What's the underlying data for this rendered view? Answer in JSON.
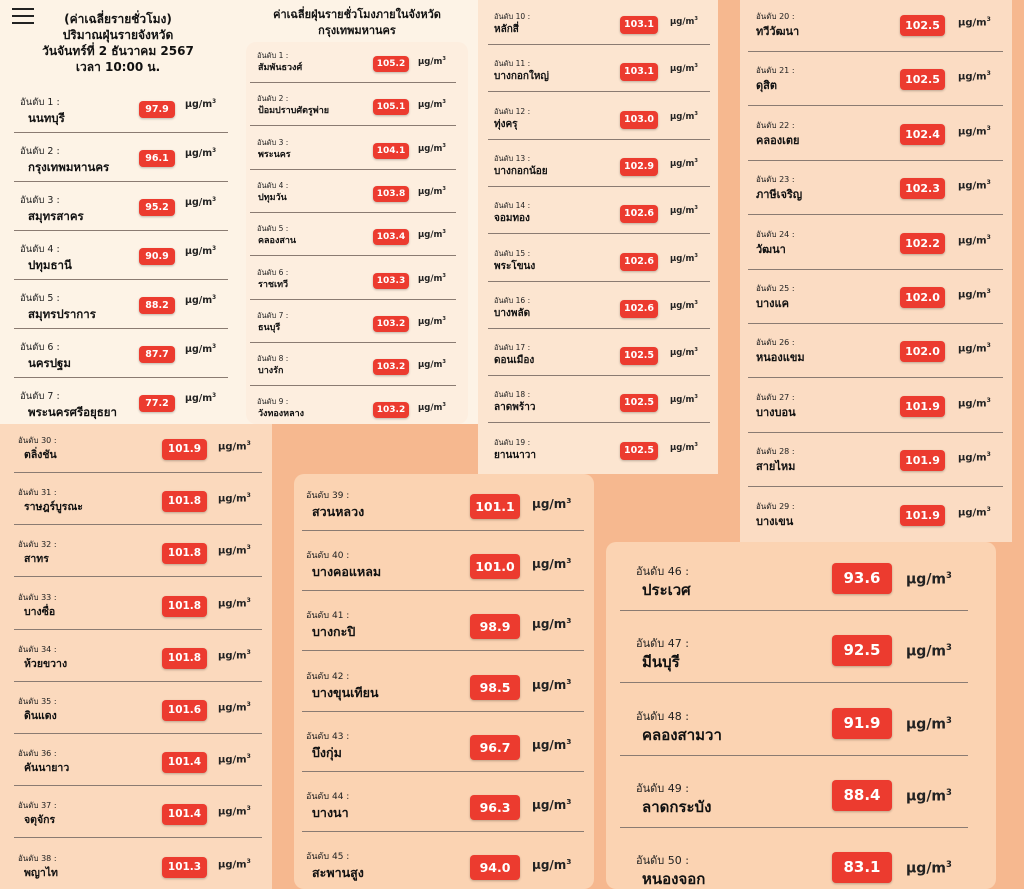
{
  "header": {
    "province_title": [
      "(ค่าเฉลี่ยรายชั่วโมง)",
      "ปริมาณฝุ่นรายจังหวัด",
      "วันจันทร์ที่ 2 ธันวาคม 2567",
      "เวลา 10:00 น."
    ],
    "bkk_title": [
      "ค่าเฉลี่ยฝุ่นรายชั่วโมงภายในจังหวัด",
      "กรุงเทพมหานคร"
    ]
  },
  "unit_text": "μg/m",
  "unit_sup": "3",
  "colors": {
    "badge": "#ec3b2f",
    "panel_light": "#fdf3e6",
    "panel_peach": "#fbd8bd"
  },
  "provinces": [
    {
      "rank": "อันดับ 1 :",
      "name": "นนทบุรี",
      "value": "97.9"
    },
    {
      "rank": "อันดับ 2 :",
      "name": "กรุงเทพมหานคร",
      "value": "96.1"
    },
    {
      "rank": "อันดับ 3 :",
      "name": "สมุทรสาคร",
      "value": "95.2"
    },
    {
      "rank": "อันดับ 4 :",
      "name": "ปทุมธานี",
      "value": "90.9"
    },
    {
      "rank": "อันดับ 5 :",
      "name": "สมุทรปราการ",
      "value": "88.2"
    },
    {
      "rank": "อันดับ 6 :",
      "name": "นครปฐม",
      "value": "87.7"
    },
    {
      "rank": "อันดับ 7 :",
      "name": "พระนครศรีอยุธยา",
      "value": "77.2"
    }
  ],
  "districts_1_9": [
    {
      "rank": "อันดับ 1 :",
      "name": "สัมพันธวงศ์",
      "value": "105.2"
    },
    {
      "rank": "อันดับ 2 :",
      "name": "ป้อมปราบศัตรูพ่าย",
      "value": "105.1"
    },
    {
      "rank": "อันดับ 3 :",
      "name": "พระนคร",
      "value": "104.1"
    },
    {
      "rank": "อันดับ 4 :",
      "name": "ปทุมวัน",
      "value": "103.8"
    },
    {
      "rank": "อันดับ 5 :",
      "name": "คลองสาน",
      "value": "103.4"
    },
    {
      "rank": "อันดับ 6 :",
      "name": "ราชเทวี",
      "value": "103.3"
    },
    {
      "rank": "อันดับ 7 :",
      "name": "ธนบุรี",
      "value": "103.2"
    },
    {
      "rank": "อันดับ 8 :",
      "name": "บางรัก",
      "value": "103.2"
    },
    {
      "rank": "อันดับ 9 :",
      "name": "วังทองหลาง",
      "value": "103.2"
    }
  ],
  "districts_10_19": [
    {
      "rank": "อันดับ 10 :",
      "name": "หลักสี่",
      "value": "103.1"
    },
    {
      "rank": "อันดับ 11 :",
      "name": "บางกอกใหญ่",
      "value": "103.1"
    },
    {
      "rank": "อันดับ 12 :",
      "name": "ทุ่งครุ",
      "value": "103.0"
    },
    {
      "rank": "อันดับ 13 :",
      "name": "บางกอกน้อย",
      "value": "102.9"
    },
    {
      "rank": "อันดับ 14 :",
      "name": "จอมทอง",
      "value": "102.6"
    },
    {
      "rank": "อันดับ 15 :",
      "name": "พระโขนง",
      "value": "102.6"
    },
    {
      "rank": "อันดับ 16 :",
      "name": "บางพลัด",
      "value": "102.6"
    },
    {
      "rank": "อันดับ 17 :",
      "name": "ดอนเมือง",
      "value": "102.5"
    },
    {
      "rank": "อันดับ 18 :",
      "name": "ลาดพร้าว",
      "value": "102.5"
    },
    {
      "rank": "อันดับ 19 :",
      "name": "ยานนาวา",
      "value": "102.5"
    }
  ],
  "districts_20_29": [
    {
      "rank": "อันดับ 20 :",
      "name": "ทวีวัฒนา",
      "value": "102.5"
    },
    {
      "rank": "อันดับ 21 :",
      "name": "ดุสิต",
      "value": "102.5"
    },
    {
      "rank": "อันดับ 22 :",
      "name": "คลองเตย",
      "value": "102.4"
    },
    {
      "rank": "อันดับ 23 :",
      "name": "ภาษีเจริญ",
      "value": "102.3"
    },
    {
      "rank": "อันดับ 24 :",
      "name": "วัฒนา",
      "value": "102.2"
    },
    {
      "rank": "อันดับ 25 :",
      "name": "บางแค",
      "value": "102.0"
    },
    {
      "rank": "อันดับ 26 :",
      "name": "หนองแขม",
      "value": "102.0"
    },
    {
      "rank": "อันดับ 27 :",
      "name": "บางบอน",
      "value": "101.9"
    },
    {
      "rank": "อันดับ 28 :",
      "name": "สายไหม",
      "value": "101.9"
    },
    {
      "rank": "อันดับ 29 :",
      "name": "บางเขน",
      "value": "101.9"
    }
  ],
  "districts_30_38": [
    {
      "rank": "อันดับ 30 :",
      "name": "ตลิ่งชัน",
      "value": "101.9"
    },
    {
      "rank": "อันดับ 31 :",
      "name": "ราษฎร์บูรณะ",
      "value": "101.8"
    },
    {
      "rank": "อันดับ 32 :",
      "name": "สาทร",
      "value": "101.8"
    },
    {
      "rank": "อันดับ 33 :",
      "name": "บางซื่อ",
      "value": "101.8"
    },
    {
      "rank": "อันดับ 34 :",
      "name": "ห้วยขวาง",
      "value": "101.8"
    },
    {
      "rank": "อันดับ 35 :",
      "name": "ดินแดง",
      "value": "101.6"
    },
    {
      "rank": "อันดับ 36 :",
      "name": "คันนายาว",
      "value": "101.4"
    },
    {
      "rank": "อันดับ 37 :",
      "name": "จตุจักร",
      "value": "101.4"
    },
    {
      "rank": "อันดับ 38 :",
      "name": "พญาไท",
      "value": "101.3"
    }
  ],
  "districts_39_45": [
    {
      "rank": "อันดับ 39 :",
      "name": "สวนหลวง",
      "value": "101.1"
    },
    {
      "rank": "อันดับ 40 :",
      "name": "บางคอแหลม",
      "value": "101.0"
    },
    {
      "rank": "อันดับ 41 :",
      "name": "บางกะปิ",
      "value": "98.9"
    },
    {
      "rank": "อันดับ 42 :",
      "name": "บางขุนเทียน",
      "value": "98.5"
    },
    {
      "rank": "อันดับ 43 :",
      "name": "บึงกุ่ม",
      "value": "96.7"
    },
    {
      "rank": "อันดับ 44 :",
      "name": "บางนา",
      "value": "96.3"
    },
    {
      "rank": "อันดับ 45 :",
      "name": "สะพานสูง",
      "value": "94.0"
    }
  ],
  "districts_46_50": [
    {
      "rank": "อันดับ 46 :",
      "name": "ประเวศ",
      "value": "93.6"
    },
    {
      "rank": "อันดับ 47 :",
      "name": "มีนบุรี",
      "value": "92.5"
    },
    {
      "rank": "อันดับ 48 :",
      "name": "คลองสามวา",
      "value": "91.9"
    },
    {
      "rank": "อันดับ 49 :",
      "name": "ลาดกระบัง",
      "value": "88.4"
    },
    {
      "rank": "อันดับ 50 :",
      "name": "หนองจอก",
      "value": "83.1"
    }
  ]
}
